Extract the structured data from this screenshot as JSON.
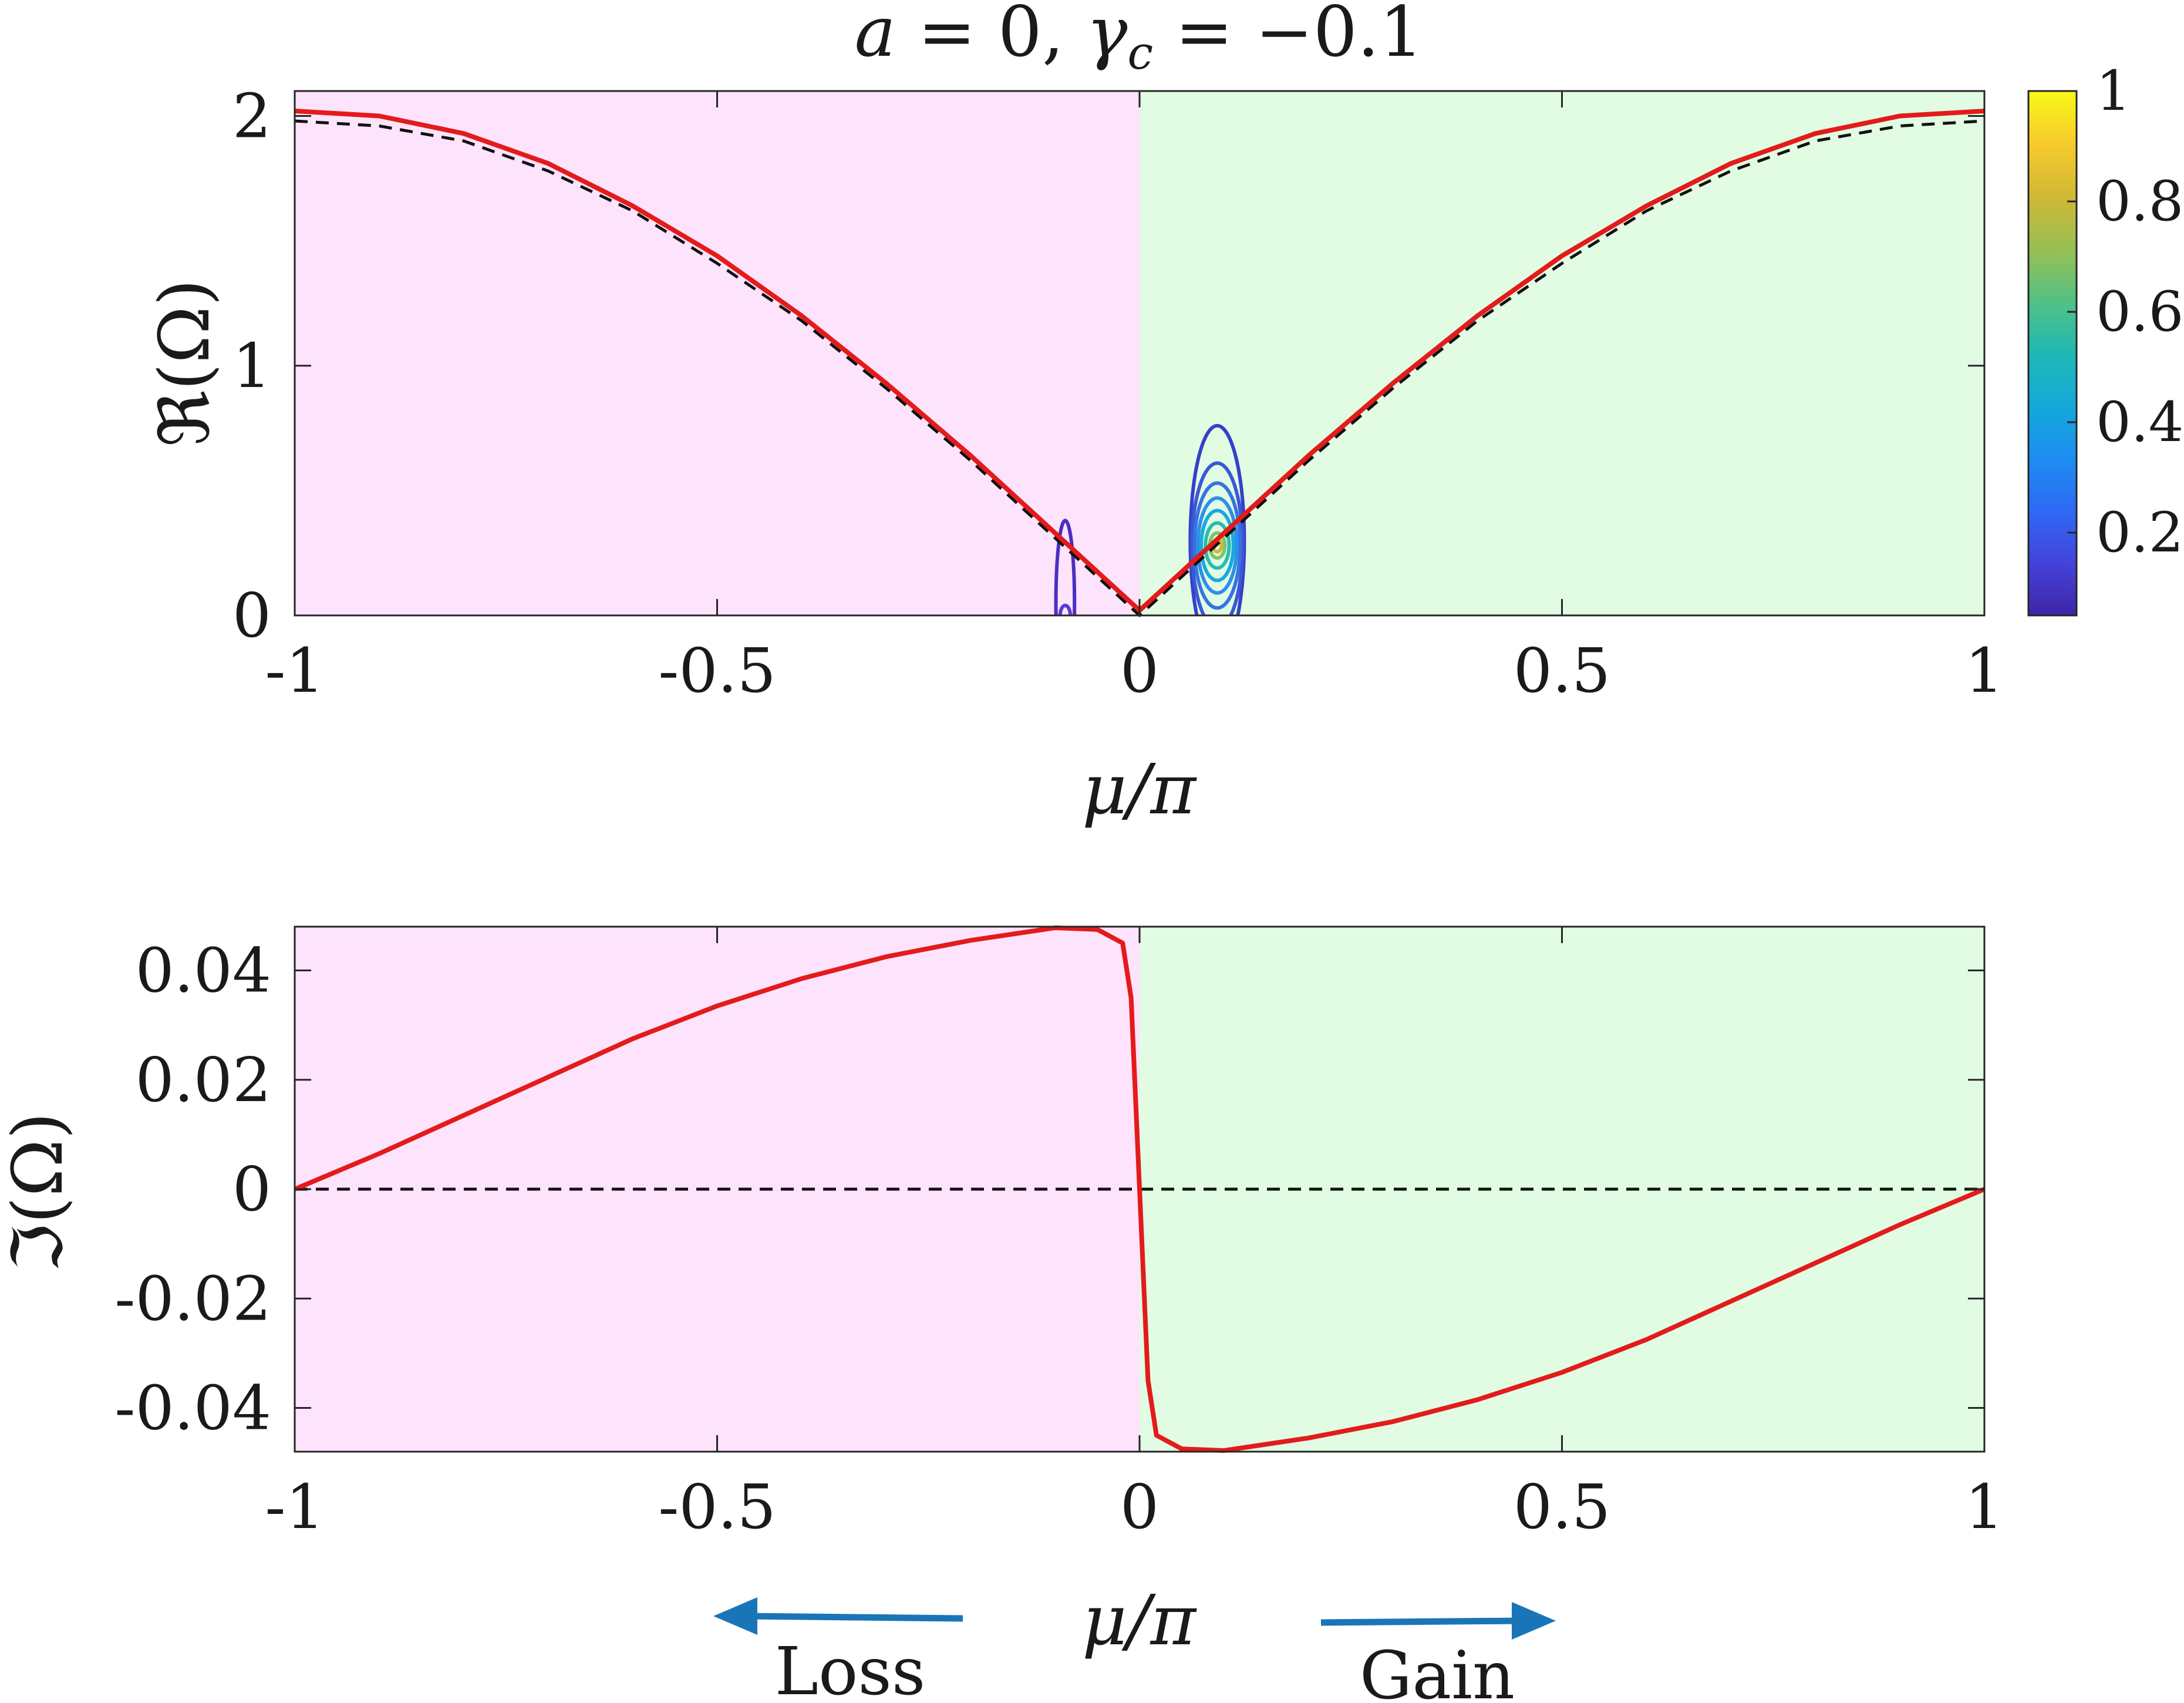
{
  "chart_data": [
    {
      "type": "line",
      "title": "a = 0, γc = −0.1",
      "xlabel": "μ/π",
      "ylabel": "ℜ(Ω)",
      "xlim": [
        -1,
        1
      ],
      "ylim": [
        0,
        2.1
      ],
      "xticks": [
        "-1",
        "-0.5",
        "0",
        "0.5",
        "1"
      ],
      "yticks": [
        "0",
        "1",
        "2"
      ],
      "regions": [
        {
          "x": [
            -1,
            0
          ],
          "color": "#fde3fb"
        },
        {
          "x": [
            0,
            1
          ],
          "color": "#e1fce3"
        }
      ],
      "series": [
        {
          "style": "solid",
          "color": "#e31b1b",
          "x": [
            -1,
            -0.9,
            -0.8,
            -0.7,
            -0.6,
            -0.5,
            -0.4,
            -0.3,
            -0.2,
            -0.1,
            0,
            0.1,
            0.2,
            0.3,
            0.4,
            0.5,
            0.6,
            0.7,
            0.8,
            0.9,
            1
          ],
          "y": [
            2.02,
            2.0,
            1.93,
            1.81,
            1.64,
            1.44,
            1.2,
            0.93,
            0.64,
            0.33,
            0.02,
            0.33,
            0.64,
            0.93,
            1.2,
            1.44,
            1.64,
            1.81,
            1.93,
            2.0,
            2.02
          ]
        },
        {
          "style": "dashed",
          "color": "#111111",
          "x": [
            -1,
            -0.9,
            -0.8,
            -0.7,
            -0.6,
            -0.5,
            -0.4,
            -0.3,
            -0.2,
            -0.1,
            0,
            0.1,
            0.2,
            0.3,
            0.4,
            0.5,
            0.6,
            0.7,
            0.8,
            0.9,
            1
          ],
          "y": [
            1.98,
            1.96,
            1.9,
            1.78,
            1.62,
            1.41,
            1.18,
            0.91,
            0.62,
            0.31,
            0.0,
            0.31,
            0.62,
            0.91,
            1.18,
            1.41,
            1.62,
            1.78,
            1.9,
            1.96,
            1.98
          ]
        }
      ],
      "contours": [
        {
          "cx": 0.092,
          "cy": 0.3,
          "rx": 0.032,
          "ry": 0.46,
          "color": "#3640c8"
        },
        {
          "cx": 0.092,
          "cy": 0.28,
          "rx": 0.03,
          "ry": 0.33,
          "color": "#3a58d6"
        },
        {
          "cx": 0.092,
          "cy": 0.28,
          "rx": 0.027,
          "ry": 0.25,
          "color": "#3772e3"
        },
        {
          "cx": 0.092,
          "cy": 0.28,
          "rx": 0.023,
          "ry": 0.19,
          "color": "#2e8fe8"
        },
        {
          "cx": 0.092,
          "cy": 0.28,
          "rx": 0.019,
          "ry": 0.14,
          "color": "#1aa9dd"
        },
        {
          "cx": 0.092,
          "cy": 0.28,
          "rx": 0.014,
          "ry": 0.09,
          "color": "#2abcb0"
        },
        {
          "cx": 0.092,
          "cy": 0.28,
          "rx": 0.009,
          "ry": 0.05,
          "color": "#7cc66a"
        },
        {
          "cx": 0.092,
          "cy": 0.28,
          "rx": 0.005,
          "ry": 0.025,
          "color": "#d8b43b"
        },
        {
          "cx": -0.088,
          "cy": 0.05,
          "rx": 0.011,
          "ry": 0.33,
          "color": "#4a2fbf"
        },
        {
          "cx": -0.088,
          "cy": 0.0,
          "rx": 0.006,
          "ry": 0.04,
          "color": "#5a3ad0"
        }
      ],
      "colorbar": {
        "range": [
          0.05,
          1
        ],
        "ticks": [
          "0.2",
          "0.4",
          "0.6",
          "0.8",
          "1"
        ],
        "colors": [
          "#3e26a8",
          "#4443d9",
          "#2e69f5",
          "#1d8ef0",
          "#14a9d9",
          "#20b8b4",
          "#53c184",
          "#9abf53",
          "#d1b835",
          "#f7cb2c",
          "#f9f916"
        ]
      }
    },
    {
      "type": "line",
      "xlabel": "μ/π",
      "ylabel": "ℑ(Ω)",
      "xlim": [
        -1,
        1
      ],
      "ylim": [
        -0.048,
        0.048
      ],
      "xticks": [
        "-1",
        "-0.5",
        "0",
        "0.5",
        "1"
      ],
      "yticks": [
        "-0.04",
        "-0.02",
        "0",
        "0.02",
        "0.04"
      ],
      "regions": [
        {
          "x": [
            -1,
            0
          ],
          "color": "#fde3fb"
        },
        {
          "x": [
            0,
            1
          ],
          "color": "#e1fce3"
        }
      ],
      "series": [
        {
          "style": "solid",
          "color": "#e31b1b",
          "x": [
            -1,
            -0.9,
            -0.8,
            -0.7,
            -0.6,
            -0.5,
            -0.4,
            -0.3,
            -0.2,
            -0.1,
            -0.05,
            -0.02,
            -0.01,
            0,
            0.01,
            0.02,
            0.05,
            0.1,
            0.2,
            0.3,
            0.4,
            0.5,
            0.6,
            0.7,
            0.8,
            0.9,
            1
          ],
          "y": [
            0.0,
            0.0065,
            0.0135,
            0.0205,
            0.0275,
            0.0335,
            0.0385,
            0.0425,
            0.0455,
            0.0478,
            0.0475,
            0.045,
            0.035,
            0.0,
            -0.035,
            -0.045,
            -0.0475,
            -0.0478,
            -0.0455,
            -0.0425,
            -0.0385,
            -0.0335,
            -0.0275,
            -0.0205,
            -0.0135,
            -0.0065,
            0.0
          ]
        },
        {
          "style": "dashed",
          "color": "#111111",
          "x": [
            -1,
            1
          ],
          "y": [
            0,
            0
          ]
        }
      ]
    }
  ],
  "title_parts": {
    "a": "a",
    "eq1": " = 0, ",
    "gamma": "γ",
    "sub": "c",
    "eq2": " = −0.1"
  },
  "top_xlabel": "μ/π",
  "top_ylabel": "ℜ(Ω)",
  "bottom_xlabel": "μ/π",
  "bottom_ylabel": "ℑ(Ω)",
  "annotations": {
    "loss": "Loss",
    "gain": "Gain",
    "arrow_color": "#1a75b8"
  }
}
